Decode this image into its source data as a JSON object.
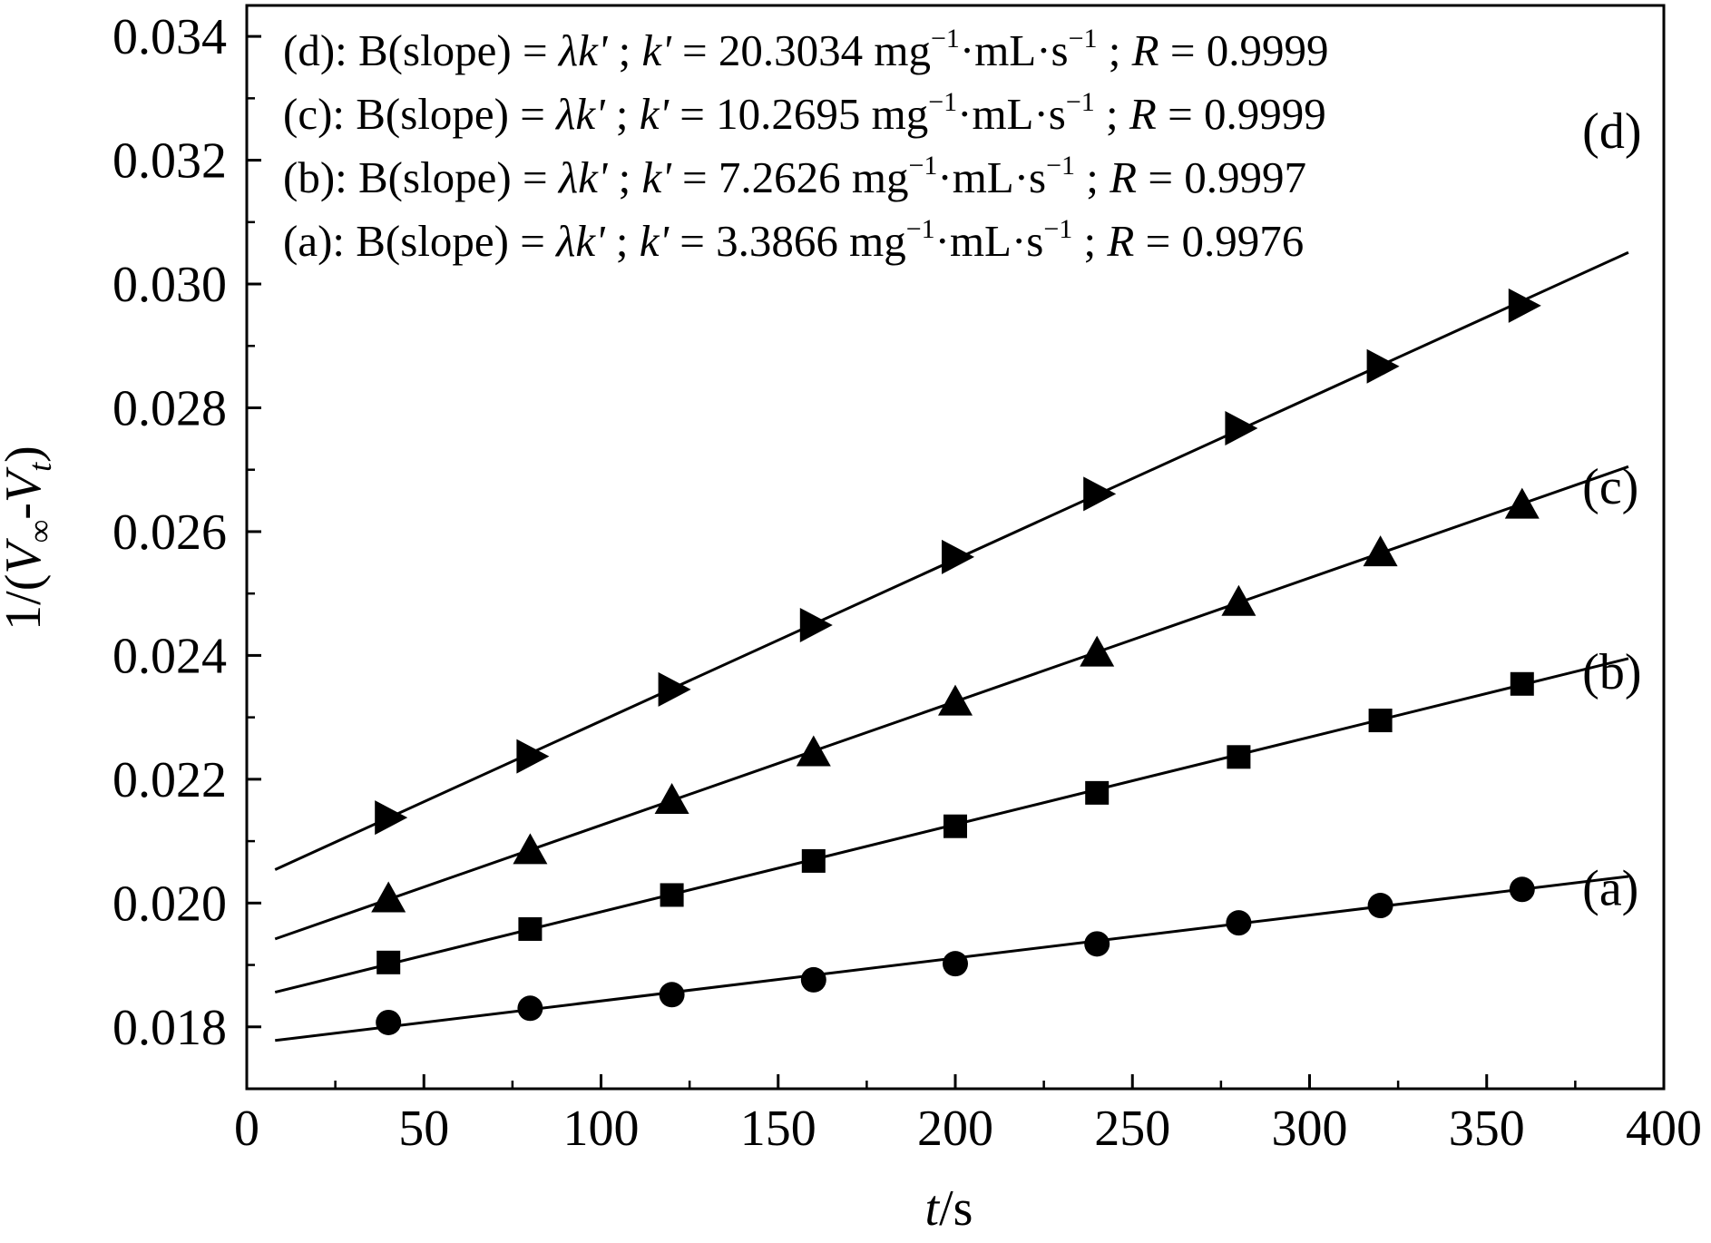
{
  "chart_data": {
    "type": "scatter",
    "xlabel": {
      "italic": "t",
      "rest": "/s"
    },
    "ylabel": {
      "prefix": "1/(",
      "v1": "V",
      "sub1": "∞",
      "mid": "-",
      "v2": "V",
      "sub2": "t",
      "suffix": ")"
    },
    "xlim": [
      0,
      400
    ],
    "ylim": [
      0.017,
      0.0345
    ],
    "xticks": [
      "0",
      "50",
      "100",
      "150",
      "200",
      "250",
      "300",
      "350",
      "400"
    ],
    "xtick_values": [
      0,
      50,
      100,
      150,
      200,
      250,
      300,
      350,
      400
    ],
    "yticks": [
      "0.018",
      "0.020",
      "0.022",
      "0.024",
      "0.026",
      "0.028",
      "0.030",
      "0.032",
      "0.034"
    ],
    "ytick_values": [
      0.018,
      0.02,
      0.022,
      0.024,
      0.026,
      0.028,
      0.03,
      0.032,
      0.034
    ],
    "grid": false,
    "series": [
      {
        "name": "(a)",
        "marker": "circle",
        "x": [
          40,
          80,
          120,
          160,
          200,
          240,
          280,
          320,
          360
        ],
        "y": [
          0.01807,
          0.0183,
          0.01852,
          0.01876,
          0.01902,
          0.01934,
          0.01968,
          0.01996,
          0.02022
        ],
        "fit": {
          "x": [
            8,
            390
          ],
          "y": [
            0.01778,
            0.02043
          ]
        }
      },
      {
        "name": "(b)",
        "marker": "square",
        "x": [
          40,
          80,
          120,
          160,
          200,
          240,
          280,
          320,
          360
        ],
        "y": [
          0.01904,
          0.01958,
          0.02013,
          0.02068,
          0.02124,
          0.02178,
          0.02236,
          0.02295,
          0.02354
        ],
        "fit": {
          "x": [
            8,
            390
          ],
          "y": [
            0.01856,
            0.02395
          ]
        }
      },
      {
        "name": "(c)",
        "marker": "triangle-up",
        "x": [
          40,
          80,
          120,
          160,
          200,
          240,
          280,
          320,
          360
        ],
        "y": [
          0.02007,
          0.02085,
          0.02166,
          0.02243,
          0.02325,
          0.02404,
          0.02486,
          0.02566,
          0.02643
        ],
        "fit": {
          "x": [
            8,
            390
          ],
          "y": [
            0.01942,
            0.02705
          ]
        }
      },
      {
        "name": "(d)",
        "marker": "triangle-right",
        "x": [
          40,
          80,
          120,
          160,
          200,
          240,
          280,
          320,
          360
        ],
        "y": [
          0.02138,
          0.02237,
          0.02345,
          0.02449,
          0.02559,
          0.02661,
          0.02767,
          0.02867,
          0.02965
        ],
        "fit": {
          "x": [
            8,
            390
          ],
          "y": [
            0.02054,
            0.03051
          ]
        }
      }
    ],
    "series_labels": [
      {
        "text": "(a)",
        "x": 377,
        "y": 0.01997
      },
      {
        "text": "(b)",
        "x": 377,
        "y": 0.02346
      },
      {
        "text": "(c)",
        "x": 377,
        "y": 0.02645
      },
      {
        "text": "(d)",
        "x": 377,
        "y": 0.0322
      }
    ],
    "annotations": [
      {
        "label": "(d): B(slope) = ",
        "lam": "λk' ",
        "kpre": "; ",
        "k": "k'",
        "kval": " = 20.3034 mg",
        "sup1": "−1",
        "mid": "·mL·s",
        "sup2": "−1",
        "rpre": " ; ",
        "r": "R",
        "rval": " = 0.9999"
      },
      {
        "label": "(c): B(slope) = ",
        "lam": "λk' ",
        "kpre": "; ",
        "k": "k'",
        "kval": " = 10.2695 mg",
        "sup1": "−1",
        "mid": "·mL·s",
        "sup2": "−1",
        "rpre": " ; ",
        "r": "R",
        "rval": " = 0.9999"
      },
      {
        "label": "(b): B(slope) = ",
        "lam": "λk' ",
        "kpre": "; ",
        "k": "k'",
        "kval": " =   7.2626 mg",
        "sup1": "−1",
        "mid": "·mL·s",
        "sup2": "−1",
        "rpre": " ; ",
        "r": "R",
        "rval": " = 0.9997"
      },
      {
        "label": "(a): B(slope) = ",
        "lam": "λk' ",
        "kpre": "; ",
        "k": "k'",
        "kval": " =   3.3866 mg",
        "sup1": "−1",
        "mid": "·mL·s",
        "sup2": "−1",
        "rpre": " ; ",
        "r": "R",
        "rval": " = 0.9976"
      }
    ],
    "colors": {
      "ink": "#000000",
      "background": "#ffffff"
    }
  }
}
